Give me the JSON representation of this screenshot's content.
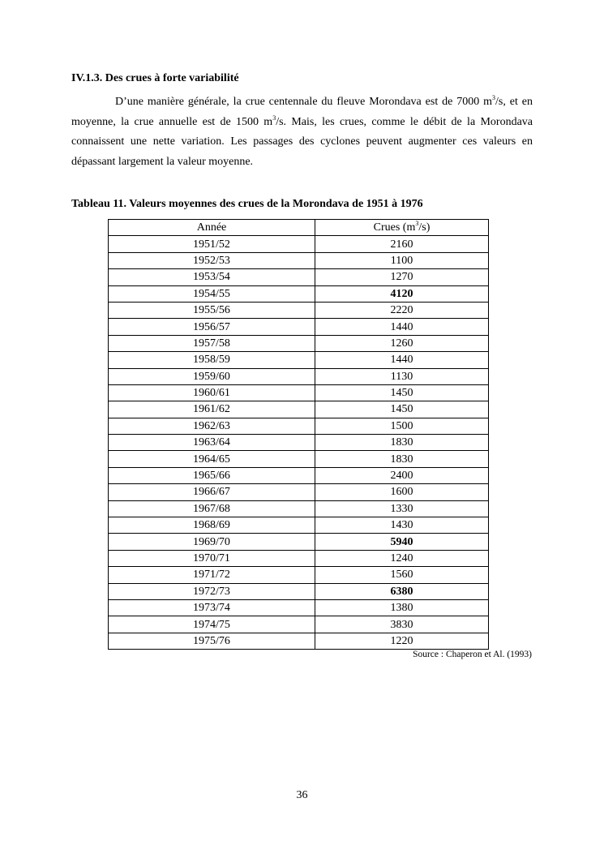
{
  "section_heading": "IV.1.3. Des crues à forte variabilité",
  "paragraph": {
    "part1": "D’une manière générale, la crue centennale du fleuve Morondava est de 7000 m",
    "sup1": "3",
    "part2": "/s, et en moyenne, la crue annuelle est de 1500 m",
    "sup2": "3",
    "part3": "/s. Mais, les crues, comme le débit de la Morondava connaissent une nette variation. Les passages des cyclones peuvent augmenter ces valeurs en dépassant largement la valeur moyenne."
  },
  "table_caption": "Tableau 11. Valeurs moyennes des crues de la Morondava de 1951 à 1976",
  "table": {
    "headers": {
      "col1": "Année",
      "col2_pre": "Crues (m",
      "col2_sup": "3",
      "col2_post": "/s)"
    },
    "rows": [
      {
        "year": "1951/52",
        "value": "2160",
        "bold": false
      },
      {
        "year": "1952/53",
        "value": "1100",
        "bold": false
      },
      {
        "year": "1953/54",
        "value": "1270",
        "bold": false
      },
      {
        "year": "1954/55",
        "value": "4120",
        "bold": true
      },
      {
        "year": "1955/56",
        "value": "2220",
        "bold": false
      },
      {
        "year": "1956/57",
        "value": "1440",
        "bold": false
      },
      {
        "year": "1957/58",
        "value": "1260",
        "bold": false
      },
      {
        "year": "1958/59",
        "value": "1440",
        "bold": false
      },
      {
        "year": "1959/60",
        "value": "1130",
        "bold": false
      },
      {
        "year": "1960/61",
        "value": "1450",
        "bold": false
      },
      {
        "year": "1961/62",
        "value": "1450",
        "bold": false
      },
      {
        "year": "1962/63",
        "value": "1500",
        "bold": false
      },
      {
        "year": "1963/64",
        "value": "1830",
        "bold": false
      },
      {
        "year": "1964/65",
        "value": "1830",
        "bold": false
      },
      {
        "year": "1965/66",
        "value": "2400",
        "bold": false
      },
      {
        "year": "1966/67",
        "value": "1600",
        "bold": false
      },
      {
        "year": "1967/68",
        "value": "1330",
        "bold": false
      },
      {
        "year": "1968/69",
        "value": "1430",
        "bold": false
      },
      {
        "year": "1969/70",
        "value": "5940",
        "bold": true
      },
      {
        "year": "1970/71",
        "value": "1240",
        "bold": false
      },
      {
        "year": "1971/72",
        "value": "1560",
        "bold": false
      },
      {
        "year": "1972/73",
        "value": "6380",
        "bold": true
      },
      {
        "year": "1973/74",
        "value": "1380",
        "bold": false
      },
      {
        "year": "1974/75",
        "value": "3830",
        "bold": false
      },
      {
        "year": "1975/76",
        "value": "1220",
        "bold": false
      }
    ]
  },
  "source": "Source : Chaperon et Al. (1993)",
  "page_number": "36"
}
